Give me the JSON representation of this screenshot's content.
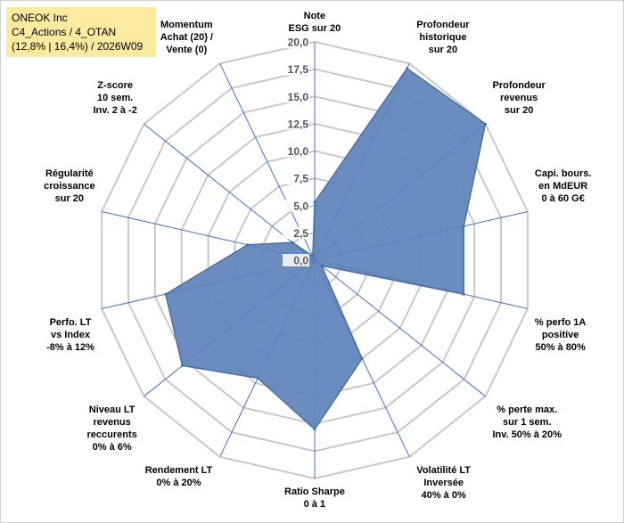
{
  "header": {
    "line1": "ONEOK Inc",
    "line2": "C4_Actions / 4_OTAN",
    "line3": "(12,8% | 16,4%) / 2026W09"
  },
  "colors": {
    "fill": "#5b80b7",
    "stroke": "#4a6fa5",
    "grid": "#c8c8c8",
    "spoke": "#4472c4",
    "header_bg": "#fbeaa0"
  },
  "chart_data": {
    "type": "radar",
    "title": "",
    "rlim": [
      0,
      20
    ],
    "tick_labels": [
      "0,0",
      "2,5",
      "5,0",
      "7,5",
      "10,0",
      "12,5",
      "15,0",
      "17,5",
      "20,0"
    ],
    "grid": true,
    "categories": [
      [
        "Note",
        "ESG sur 20"
      ],
      [
        "Profondeur",
        "historique",
        "sur 20"
      ],
      [
        "Profondeur",
        "revenus",
        "sur 20"
      ],
      [
        "Capi. bours.",
        "en MdEUR",
        "0 à 60 G€"
      ],
      [
        "% perfo 1A",
        "positive",
        "50% à 80%"
      ],
      [
        "% perte max.",
        "sur 1 sem.",
        "Inv. 50% à 20%"
      ],
      [
        "Volatilité LT",
        "Inversée",
        "40% à 0%"
      ],
      [
        "Ratio Sharpe",
        "0 à 1"
      ],
      [
        "Rendement LT",
        "0% à 20%"
      ],
      [
        "Niveau LT",
        "revenus",
        "reccurents",
        "0% à 6%"
      ],
      [
        "Perfo. LT",
        "vs Index",
        "-8% à 12%"
      ],
      [
        "Régularité",
        "croissance",
        "sur 20"
      ],
      [
        "Z-score",
        "10 sem.",
        "Inv. 2 à -2"
      ],
      [
        "Momentum",
        "Achat (20) /",
        "Vente (0)"
      ]
    ],
    "series": [
      {
        "values": [
          5.3,
          19.5,
          20.0,
          14.0,
          14.0,
          0.8,
          10.0,
          15.5,
          12.0,
          15.5,
          14.0,
          6.3,
          2.6,
          0.4
        ]
      }
    ]
  }
}
